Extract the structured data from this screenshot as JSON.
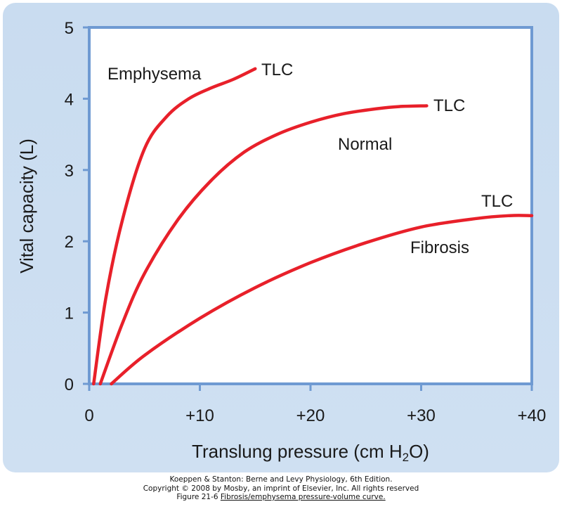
{
  "chart_data": {
    "type": "line",
    "xlabel": "Translung pressure (cm H",
    "xlabel_sub": "2",
    "xlabel_end": "O)",
    "ylabel": "Vital capacity (L)",
    "xlim": [
      0,
      40
    ],
    "ylim": [
      0,
      5
    ],
    "x_ticks": [
      0,
      10,
      20,
      30,
      40
    ],
    "x_tick_labels": [
      "0",
      "+10",
      "+20",
      "+30",
      "+40"
    ],
    "y_ticks": [
      0,
      1,
      2,
      3,
      4,
      5
    ],
    "y_tick_labels": [
      "0",
      "1",
      "2",
      "3",
      "4",
      "5"
    ],
    "grid": false,
    "line_color": "#e8202a",
    "axis_color": "#6f9ad2",
    "series": [
      {
        "name": "Emphysema",
        "end_label": "TLC",
        "x": [
          0.4,
          1.5,
          3,
          5,
          7,
          9,
          11,
          13,
          15
        ],
        "y": [
          0,
          1.2,
          2.3,
          3.3,
          3.75,
          4.0,
          4.15,
          4.27,
          4.42
        ]
      },
      {
        "name": "Normal",
        "end_label": "TLC",
        "x": [
          1,
          3,
          5,
          8,
          11,
          14,
          17,
          20,
          23,
          26,
          28,
          30.5
        ],
        "y": [
          0,
          0.85,
          1.55,
          2.3,
          2.85,
          3.25,
          3.5,
          3.67,
          3.79,
          3.86,
          3.89,
          3.9
        ]
      },
      {
        "name": "Fibrosis",
        "end_label": "TLC",
        "x": [
          2,
          5,
          10,
          15,
          20,
          25,
          30,
          35,
          38,
          40
        ],
        "y": [
          0,
          0.4,
          0.92,
          1.35,
          1.7,
          1.98,
          2.2,
          2.32,
          2.36,
          2.36
        ]
      }
    ]
  },
  "credits": {
    "line1": "Koeppen & Stanton: Berne and Levy Physiology, 6th Edition.",
    "line2": "Copyright © 2008 by Mosby, an imprint of Elsevier, Inc. All rights reserved",
    "line3_prefix": "Figure 21-6 ",
    "line3_link": "Fibrosis/emphysema pressure-volume curve."
  }
}
